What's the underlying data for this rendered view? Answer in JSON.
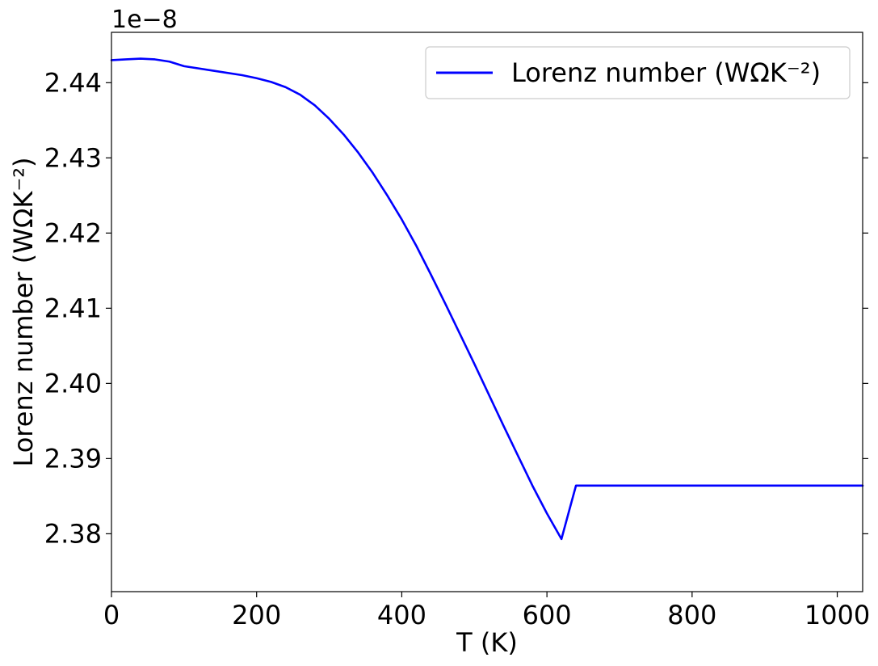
{
  "chart_data": {
    "type": "line",
    "title": "",
    "xlabel": "T (K)",
    "ylabel": "Lorenz number (WΩK⁻²)",
    "y_offset_label": "1e−8",
    "xlim": [
      0,
      1035
    ],
    "ylim": [
      2.3723,
      2.4467
    ],
    "x_ticks": [
      0,
      200,
      400,
      600,
      800,
      1000
    ],
    "y_ticks": [
      2.38,
      2.39,
      2.4,
      2.41,
      2.42,
      2.43,
      2.44
    ],
    "y_tick_labels": [
      "2.38",
      "2.39",
      "2.40",
      "2.41",
      "2.42",
      "2.43",
      "2.44"
    ],
    "grid": false,
    "legend_position": "top-right",
    "series": [
      {
        "name": "Lorenz number (WΩK⁻²)",
        "color": "#0000ff",
        "x": [
          0,
          20,
          40,
          60,
          80,
          100,
          140,
          180,
          200,
          220,
          240,
          260,
          280,
          300,
          320,
          340,
          360,
          380,
          400,
          420,
          440,
          460,
          480,
          500,
          520,
          540,
          560,
          580,
          600,
          620,
          640,
          660,
          680,
          700,
          720,
          740,
          760,
          785,
          805,
          825,
          845,
          865,
          885,
          905,
          925,
          945,
          965,
          985,
          1005,
          1035
        ],
        "y": [
          2.443,
          2.4431,
          2.4432,
          2.4431,
          2.4428,
          2.4422,
          2.4416,
          2.441,
          2.4406,
          2.4401,
          2.4394,
          2.4384,
          2.437,
          2.4352,
          2.4331,
          2.4307,
          2.428,
          2.425,
          2.4218,
          2.4183,
          2.4145,
          2.4106,
          2.4066,
          2.4026,
          2.3985,
          2.3944,
          2.3904,
          2.3864,
          2.3827,
          2.3793,
          2.3864,
          2.3864,
          2.3864,
          2.3864,
          2.3864,
          2.3864,
          2.3864,
          2.3864,
          2.3864,
          2.3864,
          2.3864,
          2.3864,
          2.3864,
          2.3864,
          2.3864,
          2.3864,
          2.3864,
          2.3864,
          2.3864,
          2.3864
        ]
      }
    ]
  }
}
